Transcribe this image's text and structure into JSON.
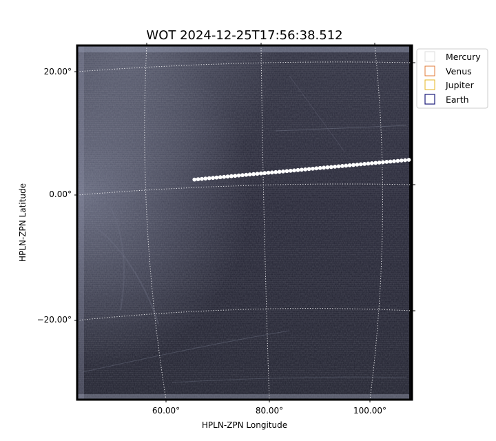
{
  "chart_data": {
    "type": "image",
    "title": "WOT 2024-12-25T17:56:38.512",
    "xlabel": "HPLN-ZPN Longitude",
    "ylabel": "HPLN-ZPN Latitude",
    "x_ticks": [
      "60.00°",
      "80.00°",
      "100.00°"
    ],
    "y_ticks": [
      "20.00°",
      "0.00°",
      "−20.00°"
    ],
    "grid": true,
    "legend_position": "upper-right outside",
    "legend": [
      {
        "name": "Mercury",
        "color": "#dddddd"
      },
      {
        "name": "Venus",
        "color": "#e07b39"
      },
      {
        "name": "Jupiter",
        "color": "#e6b422"
      },
      {
        "name": "Earth",
        "color": "#1a1a7a"
      }
    ],
    "colormap": "bone",
    "streak": {
      "lon_start": 65.5,
      "lat_start": 2.5,
      "lon_end": 107,
      "lat_end": 5.7
    }
  }
}
